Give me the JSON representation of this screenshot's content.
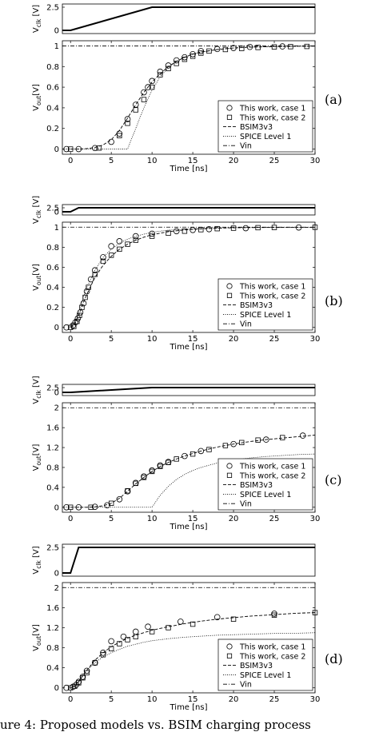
{
  "caption": "ure 4: Proposed models vs. BSIM charging process",
  "chart_data": [
    {
      "id": "a",
      "type": "line",
      "panel_label": "(a)",
      "clk": {
        "ylabel_main": "V",
        "ylabel_sub": "clk",
        "ylabel_unit": "[V]",
        "ylim": [
          0,
          2.5
        ],
        "yticks": [
          "0",
          "2.5"
        ],
        "x": [
          -1,
          0,
          10,
          30
        ],
        "y": [
          0,
          0,
          2.5,
          2.5
        ]
      },
      "out": {
        "xlabel": "Time [ns]",
        "ylabel_main": "V",
        "ylabel_sub": "out",
        "ylabel_unit": "[V]",
        "xlim": [
          -1,
          30
        ],
        "ylim": [
          -0.05,
          1.05
        ],
        "xticks": [
          "0",
          "5",
          "10",
          "15",
          "20",
          "25",
          "30"
        ],
        "yticks": [
          "0",
          "0.2",
          "0.4",
          "0.6",
          "0.8",
          "1"
        ],
        "legend": [
          "This work, case 1",
          "This work, case 2",
          "BSIM3v3",
          "SPICE Level 1",
          "Vin"
        ],
        "vin": 1.0,
        "bsim": {
          "x": [
            0,
            1,
            2,
            3,
            4,
            5,
            6,
            7,
            8,
            9,
            10,
            11,
            12,
            13,
            14,
            15,
            16,
            18,
            20,
            22,
            25,
            28,
            30
          ],
          "y": [
            0,
            0,
            0.005,
            0.015,
            0.04,
            0.09,
            0.18,
            0.3,
            0.43,
            0.55,
            0.65,
            0.73,
            0.8,
            0.85,
            0.89,
            0.92,
            0.94,
            0.965,
            0.98,
            0.988,
            0.994,
            0.997,
            0.998
          ]
        },
        "level1": {
          "x": [
            -1,
            7,
            8,
            9,
            10,
            11,
            12,
            13,
            14,
            15,
            16,
            18,
            20,
            22,
            25,
            28,
            30
          ],
          "y": [
            0,
            0,
            0.2,
            0.4,
            0.57,
            0.7,
            0.79,
            0.85,
            0.89,
            0.92,
            0.94,
            0.965,
            0.98,
            0.988,
            0.994,
            0.997,
            0.998
          ]
        },
        "case1": {
          "x": [
            -0.5,
            1,
            3,
            5,
            6,
            7,
            8,
            9,
            9.5,
            10,
            11,
            12,
            13,
            14,
            15,
            16,
            18,
            20,
            22,
            26
          ],
          "y": [
            0,
            0,
            0.01,
            0.07,
            0.15,
            0.29,
            0.43,
            0.55,
            0.6,
            0.66,
            0.75,
            0.81,
            0.86,
            0.89,
            0.92,
            0.95,
            0.97,
            0.98,
            0.99,
            0.995
          ]
        },
        "case2": {
          "x": [
            0,
            3.5,
            6,
            7,
            8,
            9,
            10,
            11,
            12,
            13,
            14,
            15,
            16,
            17,
            19,
            21,
            23,
            25,
            27,
            29
          ],
          "y": [
            0,
            0.01,
            0.13,
            0.25,
            0.38,
            0.48,
            0.6,
            0.72,
            0.78,
            0.83,
            0.87,
            0.9,
            0.93,
            0.95,
            0.965,
            0.975,
            0.985,
            0.99,
            0.993,
            0.995
          ]
        }
      }
    },
    {
      "id": "b",
      "type": "line",
      "panel_label": "(b)",
      "clk": {
        "ylabel_main": "V",
        "ylabel_sub": "clk",
        "ylabel_unit": "[V]",
        "ylim": [
          0,
          2.5
        ],
        "yticks": [
          "0",
          "2.5"
        ],
        "x": [
          -1,
          0,
          1,
          30
        ],
        "y": [
          0,
          0,
          2.5,
          2.5
        ]
      },
      "out": {
        "xlabel": "Time [ns]",
        "ylabel_main": "V",
        "ylabel_sub": "out",
        "ylabel_unit": "[V]",
        "xlim": [
          -1,
          30
        ],
        "ylim": [
          -0.05,
          1.05
        ],
        "xticks": [
          "0",
          "5",
          "10",
          "15",
          "20",
          "25",
          "30"
        ],
        "yticks": [
          "0",
          "0.2",
          "0.4",
          "0.6",
          "0.8",
          "1"
        ],
        "legend": [
          "This work, case 1",
          "This work, case 2",
          "BSIM3v3",
          "SPICE Level 1",
          "Vin"
        ],
        "vin": 1.0,
        "bsim": {
          "x": [
            0,
            0.5,
            1,
            1.5,
            2,
            3,
            4,
            5,
            6,
            7,
            8,
            9,
            10,
            12,
            14,
            16,
            18,
            20,
            22,
            25,
            28,
            30
          ],
          "y": [
            0,
            0.03,
            0.12,
            0.23,
            0.33,
            0.5,
            0.62,
            0.71,
            0.78,
            0.83,
            0.87,
            0.9,
            0.925,
            0.955,
            0.972,
            0.983,
            0.99,
            0.994,
            0.996,
            0.998,
            0.999,
            0.999
          ]
        },
        "level1": {
          "x": [
            0,
            0.5,
            1,
            1.5,
            2,
            3,
            4,
            5,
            6,
            7,
            8,
            9,
            10,
            12,
            14,
            16,
            18,
            20,
            22,
            25,
            28,
            30
          ],
          "y": [
            0,
            0.04,
            0.15,
            0.28,
            0.4,
            0.57,
            0.7,
            0.78,
            0.84,
            0.88,
            0.91,
            0.93,
            0.95,
            0.97,
            0.98,
            0.988,
            0.993,
            0.996,
            0.997,
            0.998,
            0.999,
            0.999
          ]
        },
        "case1": {
          "x": [
            -0.5,
            0.3,
            0.6,
            0.9,
            1.2,
            1.6,
            2,
            2.5,
            3,
            4,
            5,
            6,
            8,
            10,
            13,
            15,
            17,
            21.5,
            28
          ],
          "y": [
            0,
            0.02,
            0.05,
            0.09,
            0.15,
            0.24,
            0.36,
            0.48,
            0.57,
            0.7,
            0.81,
            0.86,
            0.91,
            0.935,
            0.96,
            0.972,
            0.98,
            0.99,
            0.997
          ]
        },
        "case2": {
          "x": [
            0,
            0.4,
            0.8,
            1.1,
            1.4,
            1.8,
            2.2,
            3,
            4,
            5,
            6,
            7,
            8,
            10,
            12,
            14,
            16,
            18,
            20,
            23,
            25,
            30
          ],
          "y": [
            0,
            0.01,
            0.06,
            0.12,
            0.2,
            0.3,
            0.4,
            0.53,
            0.66,
            0.72,
            0.78,
            0.83,
            0.87,
            0.91,
            0.94,
            0.96,
            0.975,
            0.985,
            0.99,
            0.995,
            0.997,
            0.999
          ]
        }
      }
    },
    {
      "id": "c",
      "type": "line",
      "panel_label": "(c)",
      "clk": {
        "ylabel_main": "V",
        "ylabel_sub": "clk",
        "ylabel_unit": "[V]",
        "ylim": [
          0,
          2.5
        ],
        "yticks": [
          "0",
          "2.5"
        ],
        "x": [
          -1,
          0,
          10,
          30
        ],
        "y": [
          0,
          0,
          2.5,
          2.5
        ]
      },
      "out": {
        "xlabel": "Time [ns]",
        "ylabel_main": "V",
        "ylabel_sub": "out",
        "ylabel_unit": "[V]",
        "xlim": [
          -1,
          30
        ],
        "ylim": [
          -0.1,
          2.1
        ],
        "xticks": [
          "0",
          "5",
          "10",
          "15",
          "20",
          "25",
          "30"
        ],
        "yticks": [
          "0",
          "0.4",
          "0.8",
          "1.2",
          "1.6",
          "2"
        ],
        "legend": [
          "This work, case 1",
          "This work, case 2",
          "BSIM3v3",
          "SPICE Level 1",
          "Vin"
        ],
        "vin": 2.0,
        "bsim": {
          "x": [
            0,
            2,
            3,
            4,
            5,
            6,
            7,
            8,
            9,
            10,
            11,
            12,
            13,
            14,
            15,
            16,
            17,
            18,
            20,
            22,
            24,
            26,
            28,
            30
          ],
          "y": [
            0,
            0,
            0.01,
            0.03,
            0.08,
            0.18,
            0.32,
            0.47,
            0.6,
            0.72,
            0.82,
            0.9,
            0.97,
            1.03,
            1.08,
            1.13,
            1.17,
            1.21,
            1.27,
            1.32,
            1.36,
            1.39,
            1.42,
            1.45
          ]
        },
        "level1": {
          "x": [
            -1,
            10,
            10.5,
            11,
            12,
            13,
            14,
            15,
            16,
            18,
            20,
            22,
            24,
            26,
            28,
            30
          ],
          "y": [
            0,
            0,
            0.12,
            0.24,
            0.42,
            0.56,
            0.66,
            0.74,
            0.8,
            0.89,
            0.95,
            0.99,
            1.02,
            1.04,
            1.06,
            1.07
          ]
        },
        "case1": {
          "x": [
            -0.5,
            1,
            3,
            4.5,
            6,
            7,
            8,
            9,
            10,
            11,
            12,
            14,
            16,
            20,
            24,
            28.5
          ],
          "y": [
            0,
            0,
            0.01,
            0.04,
            0.16,
            0.32,
            0.49,
            0.62,
            0.74,
            0.84,
            0.91,
            1.03,
            1.13,
            1.27,
            1.36,
            1.44
          ]
        },
        "case2": {
          "x": [
            0,
            2.5,
            5,
            7,
            8,
            9,
            10,
            11,
            12,
            13,
            15,
            17,
            19,
            21,
            23,
            26
          ],
          "y": [
            0,
            0,
            0.08,
            0.33,
            0.48,
            0.6,
            0.72,
            0.82,
            0.9,
            0.97,
            1.07,
            1.16,
            1.24,
            1.3,
            1.35,
            1.4
          ]
        }
      }
    },
    {
      "id": "d",
      "type": "line",
      "panel_label": "(d)",
      "clk": {
        "ylabel_main": "V",
        "ylabel_sub": "clk",
        "ylabel_unit": "[V]",
        "ylim": [
          0,
          2.5
        ],
        "yticks": [
          "0",
          "2.5"
        ],
        "x": [
          -1,
          0,
          1,
          30
        ],
        "y": [
          0,
          0,
          2.5,
          2.5
        ]
      },
      "out": {
        "xlabel": "Time [ns]",
        "ylabel_main": "V",
        "ylabel_sub": "out",
        "ylabel_unit": "[V]",
        "xlim": [
          -1,
          30
        ],
        "ylim": [
          -0.1,
          2.1
        ],
        "xticks": [
          "0",
          "5",
          "10",
          "15",
          "20",
          "25",
          "30"
        ],
        "yticks": [
          "0",
          "0.4",
          "0.8",
          "1.2",
          "1.6",
          "2"
        ],
        "legend": [
          "This work, case 1",
          "This work, case 2",
          "BSIM3v3",
          "SPICE Level 1",
          "Vin"
        ],
        "vin": 2.0,
        "bsim": {
          "x": [
            0,
            0.5,
            1,
            1.5,
            2,
            3,
            4,
            5,
            6,
            7,
            8,
            9,
            10,
            12,
            14,
            16,
            18,
            20,
            22,
            24,
            26,
            28,
            30
          ],
          "y": [
            0,
            0.03,
            0.12,
            0.24,
            0.35,
            0.55,
            0.7,
            0.82,
            0.91,
            0.99,
            1.05,
            1.1,
            1.15,
            1.22,
            1.28,
            1.33,
            1.37,
            1.4,
            1.43,
            1.45,
            1.47,
            1.49,
            1.5
          ]
        },
        "level1": {
          "x": [
            0,
            0.5,
            1,
            1.5,
            2,
            3,
            4,
            5,
            6,
            7,
            8,
            9,
            10,
            12,
            14,
            16,
            18,
            20,
            22,
            24,
            26,
            28,
            30
          ],
          "y": [
            0,
            0.03,
            0.13,
            0.25,
            0.35,
            0.5,
            0.62,
            0.7,
            0.77,
            0.83,
            0.87,
            0.91,
            0.94,
            0.98,
            1.01,
            1.03,
            1.05,
            1.06,
            1.07,
            1.08,
            1.09,
            1.09,
            1.1
          ]
        },
        "case1": {
          "x": [
            -0.5,
            0.3,
            0.7,
            1,
            1.5,
            2,
            3,
            4,
            5,
            6.5,
            8,
            9.5,
            13.5,
            18,
            25
          ],
          "y": [
            0,
            0.02,
            0.06,
            0.12,
            0.22,
            0.34,
            0.5,
            0.7,
            0.93,
            1.02,
            1.12,
            1.22,
            1.32,
            1.41,
            1.48
          ]
        },
        "case2": {
          "x": [
            0,
            0.5,
            1,
            1.5,
            2,
            3,
            4,
            5,
            6,
            7,
            8,
            10,
            12,
            15,
            20,
            25,
            30
          ],
          "y": [
            0,
            0.03,
            0.1,
            0.2,
            0.3,
            0.5,
            0.66,
            0.78,
            0.88,
            0.96,
            1.02,
            1.12,
            1.2,
            1.27,
            1.37,
            1.45,
            1.5
          ]
        }
      }
    }
  ]
}
